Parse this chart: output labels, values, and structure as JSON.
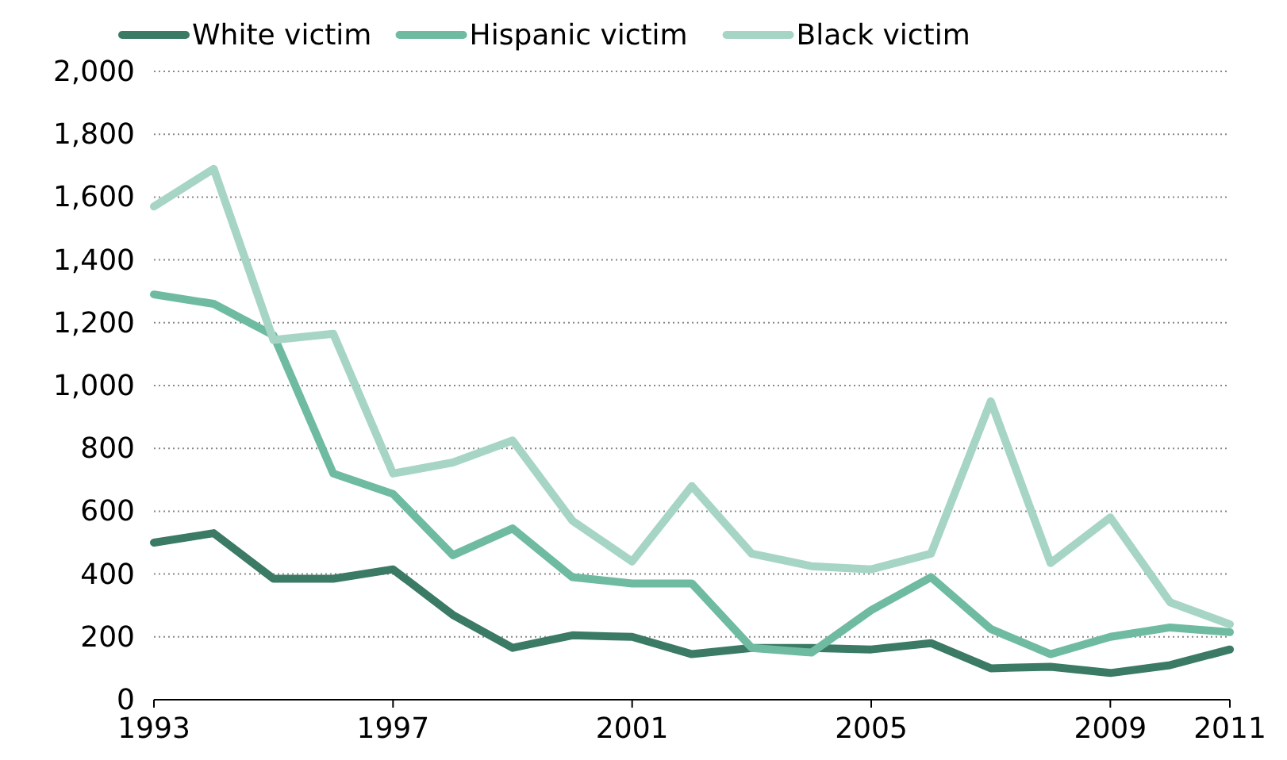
{
  "chart_data": {
    "type": "line",
    "x": [
      1993,
      1994,
      1995,
      1996,
      1997,
      1998,
      1999,
      2000,
      2001,
      2002,
      2003,
      2004,
      2005,
      2006,
      2007,
      2008,
      2009,
      2010,
      2011
    ],
    "series": [
      {
        "name": "White victim",
        "color": "#3b7a64",
        "values": [
          500,
          530,
          385,
          385,
          415,
          270,
          165,
          205,
          200,
          145,
          165,
          165,
          160,
          180,
          100,
          105,
          85,
          110,
          160
        ]
      },
      {
        "name": "Hispanic victim",
        "color": "#6fbba2",
        "values": [
          1290,
          1260,
          1160,
          720,
          655,
          460,
          545,
          390,
          370,
          370,
          165,
          150,
          285,
          390,
          225,
          145,
          200,
          230,
          215
        ]
      },
      {
        "name": "Black victim",
        "color": "#a6d5c6",
        "values": [
          1570,
          1690,
          1145,
          1165,
          720,
          755,
          825,
          570,
          440,
          680,
          465,
          425,
          415,
          465,
          950,
          435,
          580,
          310,
          240
        ]
      }
    ],
    "xlim": [
      1993,
      2011
    ],
    "xticks": [
      1993,
      1997,
      2001,
      2005,
      2009,
      2011
    ],
    "ylim": [
      0,
      2000
    ],
    "yticks": [
      {
        "value": 0,
        "label": "0"
      },
      {
        "value": 200,
        "label": "200"
      },
      {
        "value": 400,
        "label": "400"
      },
      {
        "value": 600,
        "label": "600"
      },
      {
        "value": 800,
        "label": "800"
      },
      {
        "value": 1000,
        "label": "1,000"
      },
      {
        "value": 1200,
        "label": "1,200"
      },
      {
        "value": 1400,
        "label": "1,400"
      },
      {
        "value": 1600,
        "label": "1,600"
      },
      {
        "value": 1800,
        "label": "1,800"
      },
      {
        "value": 2000,
        "label": "2,000"
      }
    ],
    "grid": "y",
    "legend": "top left",
    "marker": "none",
    "line_style": "solid"
  }
}
